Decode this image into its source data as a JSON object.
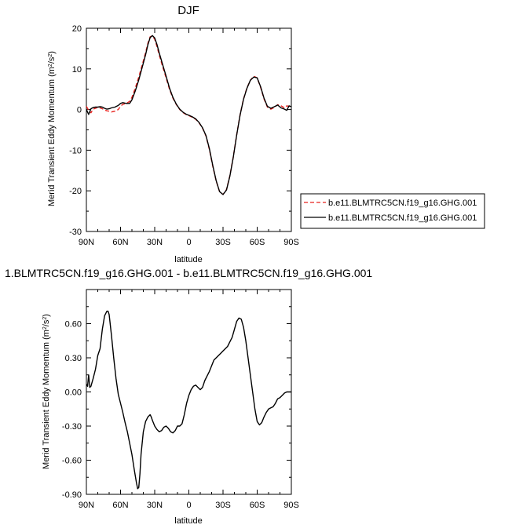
{
  "chart_data": [
    {
      "type": "line",
      "title": "DJF",
      "xlabel": "latitude",
      "ylabel": "Merid Transient Eddy Momentum (m",
      "ylabel_unit_exp": "2",
      "ylabel_unit_mid": "/s",
      "ylabel_unit_exp2": "2",
      "ylabel_unit_end": ")",
      "xlim": [
        90,
        -90
      ],
      "ylim": [
        -30,
        20
      ],
      "x_tick_values": [
        90,
        60,
        30,
        0,
        -30,
        -60,
        -90
      ],
      "x_tick_labels": [
        "90N",
        "60N",
        "30N",
        "0",
        "30S",
        "60S",
        "90S"
      ],
      "y_tick_values": [
        -30,
        -20,
        -10,
        0,
        10,
        20
      ],
      "y_tick_labels": [
        "-30",
        "-20",
        "-10",
        "0",
        "10",
        "20"
      ],
      "legend_position": "right",
      "series": [
        {
          "name": "b.e11.BLMTRC5CN.f19_g16.GHG.001",
          "color": "#e8231f",
          "dash": true,
          "x": [
            90,
            88,
            86,
            84,
            82,
            80,
            78,
            76,
            74,
            72,
            70,
            68,
            65,
            62,
            60,
            58,
            55,
            52,
            50,
            47,
            44,
            41,
            38,
            36,
            34,
            32,
            30,
            28,
            26,
            23,
            20,
            17,
            14,
            11,
            8,
            5,
            2,
            0,
            -3,
            -6,
            -9,
            -12,
            -15,
            -18,
            -21,
            -24,
            -27,
            -30,
            -33,
            -36,
            -39,
            -42,
            -45,
            -48,
            -51,
            -54,
            -57,
            -60,
            -63,
            -66,
            -69,
            -72,
            -75,
            -78,
            -81,
            -84,
            -86,
            -88,
            -90
          ],
          "y": [
            0.8,
            -0.2,
            -0.8,
            0.1,
            0.3,
            0.5,
            0.4,
            0.2,
            -0.1,
            -0.3,
            -0.4,
            -0.6,
            -0.4,
            0.0,
            0.8,
            1.3,
            1.5,
            2.0,
            3.0,
            5.3,
            8.0,
            11.0,
            14.0,
            16.3,
            17.9,
            18.1,
            17.3,
            15.5,
            13.4,
            10.5,
            7.8,
            5.0,
            2.8,
            1.2,
            0.0,
            -0.8,
            -1.3,
            -1.5,
            -1.9,
            -2.4,
            -3.3,
            -4.6,
            -6.5,
            -9.8,
            -14.0,
            -17.6,
            -20.2,
            -20.9,
            -19.7,
            -16.3,
            -11.6,
            -6.2,
            -1.2,
            2.6,
            5.3,
            7.2,
            8.2,
            7.8,
            5.4,
            2.6,
            0.6,
            0.1,
            0.5,
            1.2,
            0.9,
            0.4,
            0.9,
            0.8,
            0.9
          ]
        },
        {
          "name": "b.e11.BLMTRC5CN.f19_g16.GHG.001",
          "color": "#000000",
          "dash": false,
          "x": [
            90,
            88,
            86,
            84,
            82,
            80,
            78,
            76,
            74,
            72,
            70,
            68,
            65,
            62,
            60,
            58,
            55,
            52,
            50,
            47,
            44,
            41,
            38,
            36,
            34,
            32,
            30,
            28,
            26,
            23,
            20,
            17,
            14,
            11,
            8,
            5,
            2,
            0,
            -3,
            -6,
            -9,
            -12,
            -15,
            -18,
            -21,
            -24,
            -27,
            -30,
            -33,
            -36,
            -39,
            -42,
            -45,
            -48,
            -51,
            -54,
            -57,
            -60,
            -63,
            -66,
            -69,
            -72,
            -75,
            -78,
            -81,
            -84,
            -86,
            -88,
            -90
          ],
          "y": [
            0.0,
            -1.2,
            0.2,
            0.5,
            0.6,
            0.6,
            0.7,
            0.6,
            0.3,
            0.1,
            0.2,
            0.4,
            0.6,
            1.0,
            1.5,
            1.7,
            1.5,
            1.5,
            2.4,
            4.6,
            7.3,
            10.4,
            13.5,
            15.9,
            17.7,
            18.2,
            17.6,
            16.0,
            13.9,
            11.0,
            8.2,
            5.3,
            3.0,
            1.3,
            0.1,
            -0.7,
            -1.2,
            -1.4,
            -1.8,
            -2.3,
            -3.2,
            -4.5,
            -6.4,
            -9.6,
            -13.8,
            -17.5,
            -20.2,
            -20.9,
            -19.8,
            -16.4,
            -11.7,
            -6.3,
            -1.3,
            2.5,
            5.2,
            7.2,
            8.0,
            7.8,
            5.6,
            2.8,
            0.8,
            0.3,
            0.7,
            1.1,
            0.4,
            0.1,
            -0.2,
            0.9,
            0.7
          ]
        }
      ]
    },
    {
      "type": "line",
      "title": "1.BLMTRC5CN.f19_g16.GHG.001 - b.e11.BLMTRC5CN.f19_g16.GHG.001",
      "xlabel": "latitude",
      "ylabel": "Merid Transient Eddy Momentum (m",
      "ylabel_unit_exp": "2",
      "ylabel_unit_mid": "/s",
      "ylabel_unit_exp2": "2",
      "ylabel_unit_end": ")",
      "xlim": [
        90,
        -90
      ],
      "ylim": [
        -0.9,
        0.9
      ],
      "x_tick_values": [
        90,
        60,
        30,
        0,
        -30,
        -60,
        -90
      ],
      "x_tick_labels": [
        "90N",
        "60N",
        "30N",
        "0",
        "30S",
        "60S",
        "90S"
      ],
      "y_tick_values": [
        -0.9,
        -0.6,
        -0.3,
        0.0,
        0.3,
        0.6
      ],
      "y_tick_labels": [
        "-0.90",
        "-0.60",
        "-0.30",
        "0.00",
        "0.30",
        "0.60"
      ],
      "series": [
        {
          "color": "#000000",
          "dash": false,
          "x": [
            90,
            89,
            88,
            87,
            86,
            84,
            82,
            80,
            78,
            76,
            74,
            72,
            71,
            70,
            68,
            66,
            64,
            62,
            60,
            58,
            56,
            54,
            52,
            50,
            48,
            46,
            45,
            44,
            43,
            42,
            40,
            38,
            36,
            34,
            33,
            32,
            30,
            28,
            26,
            24,
            22,
            20,
            18,
            16,
            14,
            12,
            10,
            8,
            6,
            4,
            2,
            0,
            -2,
            -4,
            -6,
            -8,
            -10,
            -12,
            -14,
            -16,
            -18,
            -20,
            -22,
            -24,
            -26,
            -28,
            -30,
            -32,
            -34,
            -36,
            -38,
            -40,
            -42,
            -44,
            -46,
            -48,
            -50,
            -52,
            -54,
            -56,
            -58,
            -60,
            -62,
            -64,
            -66,
            -68,
            -70,
            -72,
            -74,
            -76,
            -78,
            -80,
            -82,
            -84,
            -86,
            -88,
            -90
          ],
          "y": [
            0.07,
            0.05,
            0.15,
            0.04,
            0.05,
            0.12,
            0.2,
            0.32,
            0.38,
            0.55,
            0.67,
            0.71,
            0.71,
            0.68,
            0.5,
            0.3,
            0.12,
            -0.02,
            -0.1,
            -0.18,
            -0.27,
            -0.35,
            -0.45,
            -0.55,
            -0.68,
            -0.8,
            -0.85,
            -0.84,
            -0.72,
            -0.55,
            -0.35,
            -0.26,
            -0.22,
            -0.2,
            -0.22,
            -0.25,
            -0.3,
            -0.33,
            -0.35,
            -0.34,
            -0.31,
            -0.3,
            -0.32,
            -0.35,
            -0.36,
            -0.34,
            -0.3,
            -0.3,
            -0.28,
            -0.2,
            -0.1,
            -0.03,
            0.02,
            0.05,
            0.06,
            0.04,
            0.02,
            0.04,
            0.1,
            0.14,
            0.18,
            0.23,
            0.28,
            0.3,
            0.32,
            0.34,
            0.36,
            0.38,
            0.4,
            0.44,
            0.48,
            0.55,
            0.62,
            0.65,
            0.64,
            0.57,
            0.45,
            0.3,
            0.15,
            0.0,
            -0.15,
            -0.26,
            -0.29,
            -0.27,
            -0.22,
            -0.18,
            -0.15,
            -0.14,
            -0.13,
            -0.1,
            -0.06,
            -0.05,
            -0.03,
            -0.01,
            0.0,
            0.0,
            0.0
          ]
        }
      ]
    }
  ]
}
